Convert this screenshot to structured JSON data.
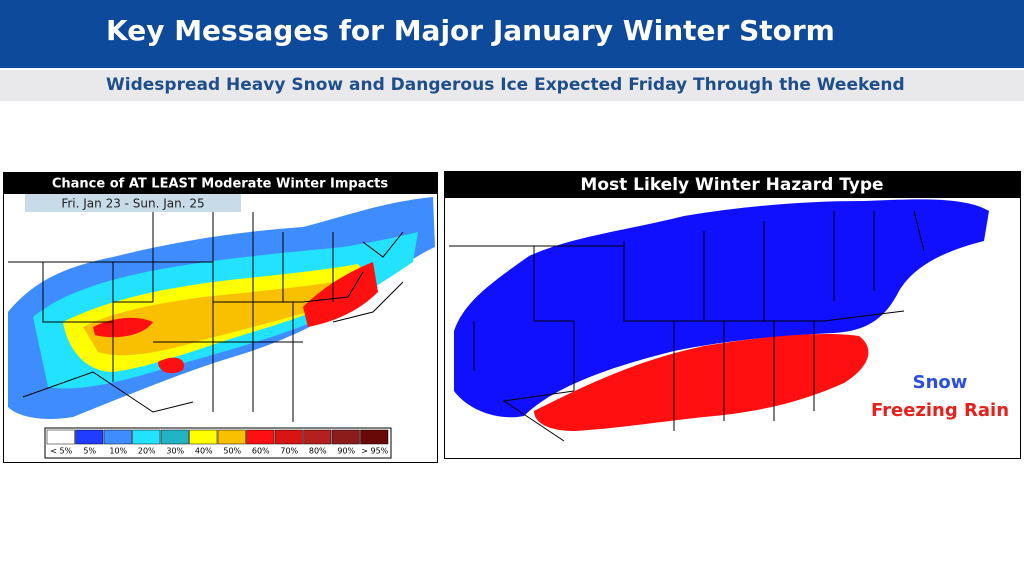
{
  "header": {
    "title": "Key Messages for Major January Winter Storm",
    "subtitle": "Widespread Heavy Snow and Dangerous Ice Expected Friday Through the Weekend"
  },
  "left_map": {
    "title": "Chance of AT LEAST Moderate Winter Impacts",
    "date_range": "Fri. Jan 23 - Sun. Jan. 25",
    "legend": [
      {
        "label": "< 5%",
        "color": "#ffffff"
      },
      {
        "label": "5%",
        "color": "#1f3cff"
      },
      {
        "label": "10%",
        "color": "#3f8cff"
      },
      {
        "label": "20%",
        "color": "#22e2ff"
      },
      {
        "label": "30%",
        "color": "#22b4c4"
      },
      {
        "label": "40%",
        "color": "#ffff00"
      },
      {
        "label": "50%",
        "color": "#f8c000"
      },
      {
        "label": "60%",
        "color": "#ff1010"
      },
      {
        "label": "70%",
        "color": "#d81414"
      },
      {
        "label": "80%",
        "color": "#b42020"
      },
      {
        "label": "90%",
        "color": "#8c1c1c"
      },
      {
        "label": "> 95%",
        "color": "#6a0808"
      }
    ]
  },
  "right_map": {
    "title": "Most Likely Winter Hazard Type",
    "legend": [
      {
        "label": "Snow",
        "color": "#2c4ee0"
      },
      {
        "label": "Freezing Rain",
        "color": "#e8201c"
      }
    ]
  }
}
